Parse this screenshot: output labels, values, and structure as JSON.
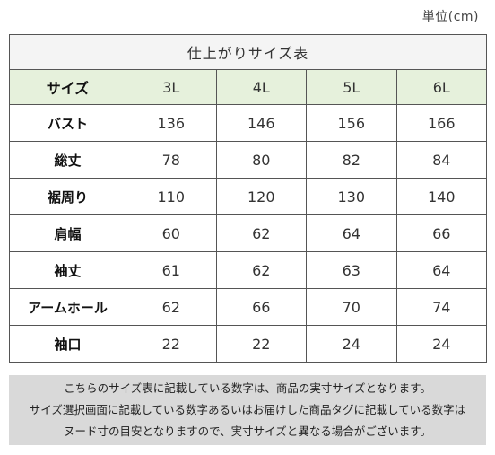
{
  "unit_label": "単位(cm)",
  "table": {
    "title": "仕上がりサイズ表",
    "header_label": "サイズ",
    "sizes": [
      "3L",
      "4L",
      "5L",
      "6L"
    ],
    "rows": [
      {
        "label": "バスト",
        "values": [
          "136",
          "146",
          "156",
          "166"
        ]
      },
      {
        "label": "総丈",
        "values": [
          "78",
          "80",
          "82",
          "84"
        ]
      },
      {
        "label": "裾周り",
        "values": [
          "110",
          "120",
          "130",
          "140"
        ]
      },
      {
        "label": "肩幅",
        "values": [
          "60",
          "62",
          "64",
          "66"
        ]
      },
      {
        "label": "袖丈",
        "values": [
          "61",
          "62",
          "63",
          "64"
        ]
      },
      {
        "label": "アームホール",
        "values": [
          "62",
          "66",
          "70",
          "74"
        ]
      },
      {
        "label": "袖口",
        "values": [
          "22",
          "22",
          "24",
          "24"
        ]
      }
    ]
  },
  "note": {
    "lines": [
      "こちらのサイズ表に記載している数字は、商品の実寸サイズとなります。",
      "サイズ選択画面に記載している数字あるいはお届けした商品タグに記載している数字は",
      "ヌード寸の目安となりますので、実寸サイズと異なる場合がございます。"
    ]
  },
  "colors": {
    "header_bg": "#e6f1dc",
    "title_bg": "#f4f4f4",
    "note_bg": "#d9d9d9",
    "border": "#555555"
  }
}
